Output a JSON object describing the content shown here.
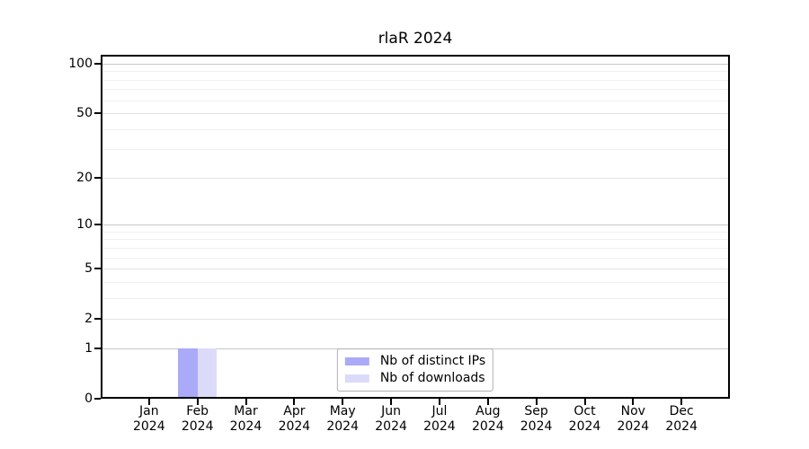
{
  "chart_data": {
    "type": "bar",
    "title": "rlaR 2024",
    "categories": [
      "Jan 2024",
      "Feb 2024",
      "Mar 2024",
      "Apr 2024",
      "May 2024",
      "Jun 2024",
      "Jul 2024",
      "Aug 2024",
      "Sep 2024",
      "Oct 2024",
      "Nov 2024",
      "Dec 2024"
    ],
    "series": [
      {
        "name": "Nb of distinct IPs",
        "color": "#aaaaf8",
        "values": [
          0,
          1,
          0,
          0,
          0,
          0,
          0,
          0,
          0,
          0,
          0,
          0
        ]
      },
      {
        "name": "Nb of downloads",
        "color": "#dbdaf9",
        "values": [
          0,
          1,
          0,
          0,
          0,
          0,
          0,
          0,
          0,
          0,
          0,
          0
        ]
      }
    ],
    "xlabel": "",
    "ylabel": "",
    "yscale": "log1p",
    "ylim": [
      0,
      113
    ],
    "yticks": [
      0,
      1,
      2,
      5,
      10,
      20,
      50,
      100
    ],
    "minor_gridlines": [
      3,
      4,
      6,
      7,
      8,
      9,
      30,
      40,
      60,
      70,
      80,
      90
    ],
    "emphasis_gridlines": [
      1,
      10,
      100
    ],
    "grid": true,
    "legend": {
      "position": "inside-bottom-center"
    }
  }
}
